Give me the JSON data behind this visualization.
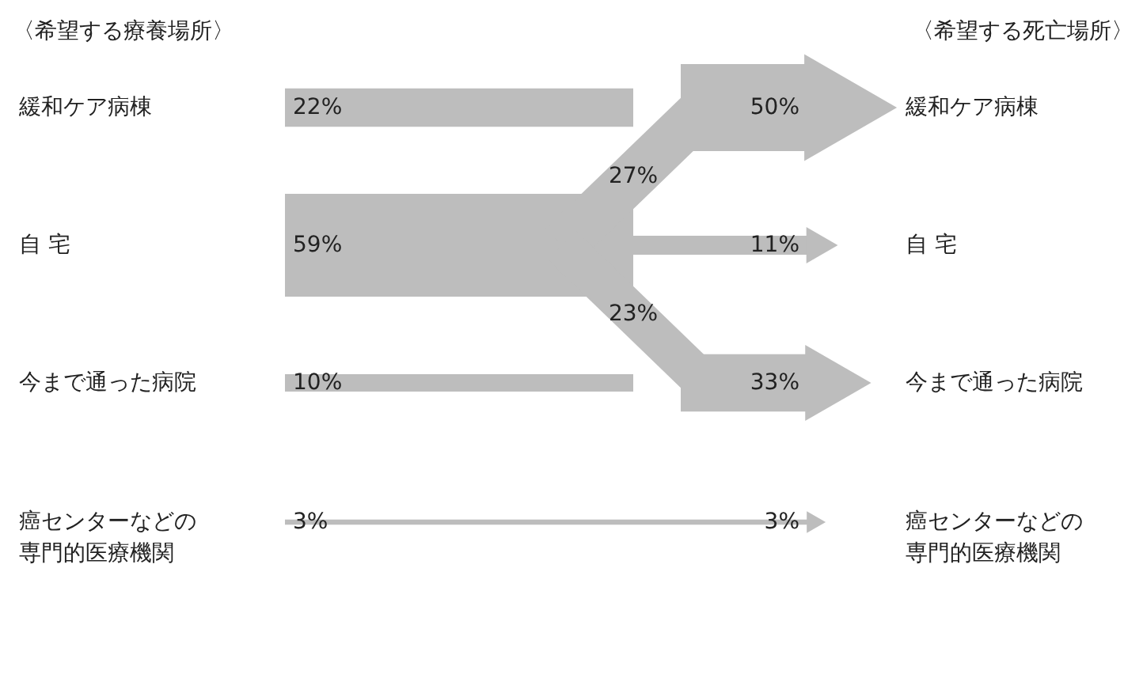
{
  "chart_data": {
    "type": "other",
    "categories": [
      "緩和ケア病棟",
      "自 宅",
      "今まで通った病院",
      "癌センターなどの専門的医療機関"
    ],
    "annotations": [
      "〈希望する療養場所〉",
      "〈希望する死亡場所〉"
    ],
    "series": [
      {
        "color": "#bdbdbd",
        "values": [
          22,
          59,
          10,
          3
        ],
        "value_labels": [
          "22%",
          "59%",
          "10%",
          "3%"
        ]
      },
      {
        "color": "#bdbdbd",
        "values": [
          50,
          11,
          33,
          3
        ],
        "value_labels": [
          "50%",
          "11%",
          "33%",
          "3%"
        ]
      },
      {
        "color": "#bdbdbd",
        "values": [
          27,
          null,
          23,
          null
        ],
        "value_labels": [
          "27%",
          null,
          "23%",
          null
        ]
      }
    ]
  }
}
